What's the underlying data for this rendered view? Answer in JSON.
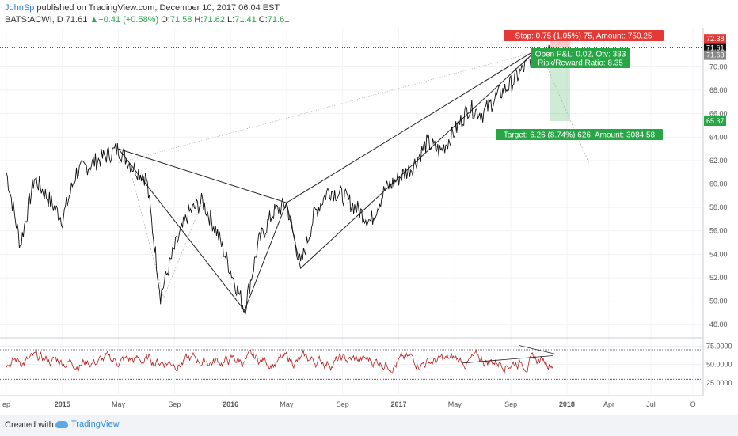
{
  "header": {
    "author": "JohnSp",
    "published": "published on TradingView.com, December 10, 2017 06:04 EST"
  },
  "ohlc": {
    "symbol": "BATS:ACWI, D",
    "last": "71.61",
    "change": "+0.41 (+0.58%)",
    "o_label": "O:",
    "o": "71.58",
    "h_label": "H:",
    "h": "71.62",
    "l_label": "L:",
    "l": "71.41",
    "c_label": "C:",
    "c": "71.61"
  },
  "annotations": {
    "stop": "Stop: 0.75 (1.05%) 75, Amount: 750.25",
    "open_pl": "Open P&L: 0.02, Qty: 333",
    "risk_reward": "Risk/Reward Ratio: 8.35",
    "target": "Target: 6.26 (8.74%) 626, Amount: 3084.58"
  },
  "price_tags": {
    "stop": "72.38",
    "last": "71.61",
    "entry": "71.63",
    "target": "65.37"
  },
  "colors": {
    "up": "#26a644",
    "stop": "#e53935",
    "target": "#26a644",
    "rsi": "#b71c1c",
    "author": "#2f7fd2"
  },
  "footer": {
    "created": "Created with",
    "brand": "TradingView"
  },
  "chart_data": {
    "type": "line",
    "title": "BATS:ACWI, D",
    "y_ticks": [
      "48.00",
      "50.00",
      "52.00",
      "54.00",
      "56.00",
      "58.00",
      "60.00",
      "62.00",
      "64.00",
      "66.00",
      "68.00",
      "70.00"
    ],
    "x_ticks": [
      "ep",
      "2015",
      "May",
      "Sep",
      "2016",
      "May",
      "Sep",
      "2017",
      "May",
      "Sep",
      "2018",
      "Apr",
      "Jul",
      "O"
    ],
    "rsi_ticks": [
      "75.0000",
      "50.0000",
      "25.0000"
    ],
    "ylim": [
      47,
      73
    ],
    "rsi_ylim": [
      10,
      85
    ],
    "price_path": [
      {
        "t": "2014-09",
        "v": 61.0
      },
      {
        "t": "2014-10",
        "v": 54.8
      },
      {
        "t": "2014-11",
        "v": 60.5
      },
      {
        "t": "2015-01",
        "v": 57.0
      },
      {
        "t": "2015-02",
        "v": 61.0
      },
      {
        "t": "2015-05",
        "v": 63.0
      },
      {
        "t": "2015-06",
        "v": 61.5
      },
      {
        "t": "2015-07",
        "v": 60.5
      },
      {
        "t": "2015-08",
        "v": 50.5
      },
      {
        "t": "2015-09",
        "v": 54.5
      },
      {
        "t": "2015-10",
        "v": 57.5
      },
      {
        "t": "2015-11",
        "v": 58.5
      },
      {
        "t": "2015-12",
        "v": 56.0
      },
      {
        "t": "2016-02",
        "v": 49.3
      },
      {
        "t": "2016-03",
        "v": 55.0
      },
      {
        "t": "2016-04",
        "v": 57.5
      },
      {
        "t": "2016-05",
        "v": 58.3
      },
      {
        "t": "2016-06",
        "v": 53.0
      },
      {
        "t": "2016-07",
        "v": 57.5
      },
      {
        "t": "2016-08",
        "v": 59.5
      },
      {
        "t": "2016-09",
        "v": 59.0
      },
      {
        "t": "2016-11",
        "v": 56.8
      },
      {
        "t": "2016-12",
        "v": 59.5
      },
      {
        "t": "2017-02",
        "v": 61.5
      },
      {
        "t": "2017-03",
        "v": 63.5
      },
      {
        "t": "2017-04",
        "v": 62.8
      },
      {
        "t": "2017-05",
        "v": 64.5
      },
      {
        "t": "2017-06",
        "v": 66.5
      },
      {
        "t": "2017-07",
        "v": 66.0
      },
      {
        "t": "2017-08",
        "v": 67.5
      },
      {
        "t": "2017-09",
        "v": 68.5
      },
      {
        "t": "2017-10",
        "v": 70.0
      },
      {
        "t": "2017-11",
        "v": 71.4
      },
      {
        "t": "2017-12",
        "v": 71.6
      }
    ],
    "pattern_lines": [
      [
        {
          "t": "2015-05",
          "v": 63.0
        },
        {
          "t": "2016-02",
          "v": 49.2
        },
        {
          "t": "2016-05",
          "v": 58.4
        },
        {
          "t": "2016-06",
          "v": 52.8
        },
        {
          "t": "2017-11",
          "v": 71.6
        },
        {
          "t": "2016-05",
          "v": 58.4
        },
        {
          "t": "2015-05",
          "v": 63.0
        }
      ]
    ],
    "position": {
      "entry": 71.63,
      "stop": 72.38,
      "target": 65.37,
      "start": "2017-11",
      "end": "2018-01"
    },
    "rsi_levels": [
      70,
      30
    ]
  }
}
